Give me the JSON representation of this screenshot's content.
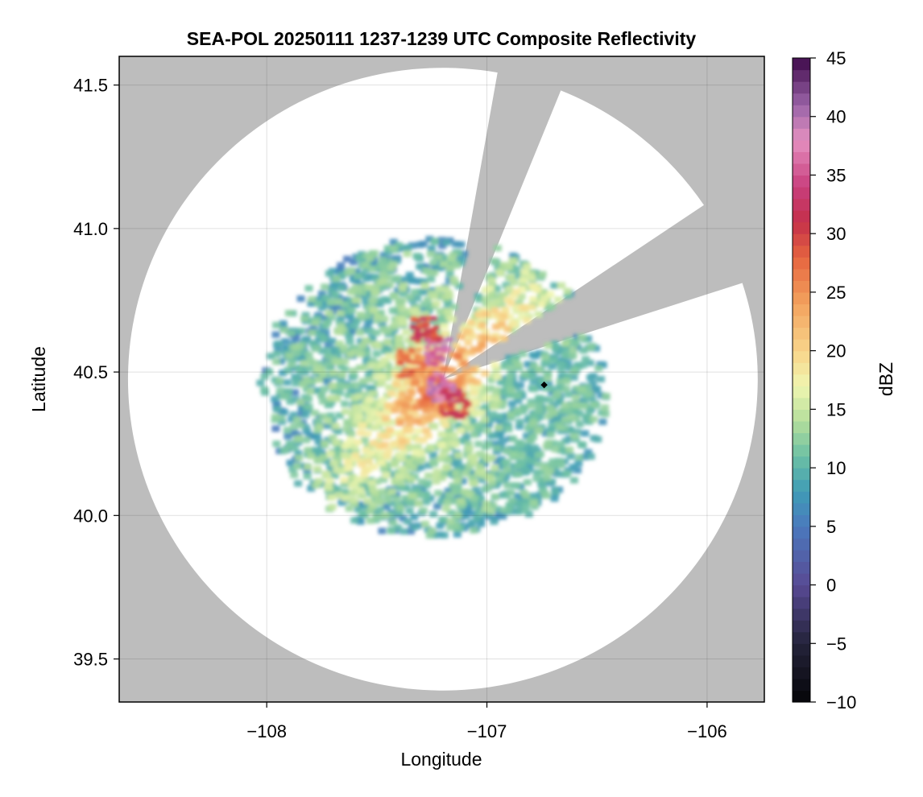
{
  "chart_data": {
    "type": "heatmap",
    "title": "SEA-POL 20250111 1237-1239 UTC Composite Reflectivity",
    "xlabel": "Longitude",
    "ylabel": "Latitude",
    "xlim": [
      -108.67,
      -105.74
    ],
    "ylim": [
      39.35,
      41.6
    ],
    "xticks": [
      -108,
      -107,
      -106
    ],
    "xtick_labels": [
      "−108",
      "−107",
      "−106"
    ],
    "yticks": [
      39.5,
      40.0,
      40.5,
      41.0,
      41.5
    ],
    "ytick_labels": [
      "39.5",
      "40.0",
      "40.5",
      "41.0",
      "41.5"
    ],
    "grid": true,
    "background_color": "#bdbdbd",
    "coverage_color": "#ffffff",
    "radar": {
      "center_lon": -107.2,
      "center_lat": 40.475,
      "range_lon_deg": 1.43,
      "range_lat_deg": 1.085,
      "blocked_sectors_deg": [
        [
          10,
          22
        ],
        [
          56,
          72
        ]
      ]
    },
    "marker": {
      "lon": -106.74,
      "lat": 40.455,
      "color": "#000000"
    },
    "colorbar": {
      "label": "dBZ",
      "min": -10,
      "max": 45,
      "ticks": [
        -10,
        -5,
        0,
        5,
        10,
        15,
        20,
        25,
        30,
        35,
        40,
        45
      ],
      "tick_labels": [
        "−10",
        "−5",
        "0",
        "5",
        "10",
        "15",
        "20",
        "25",
        "30",
        "35",
        "40",
        "45"
      ],
      "colormap": "spectral-reversed"
    }
  }
}
